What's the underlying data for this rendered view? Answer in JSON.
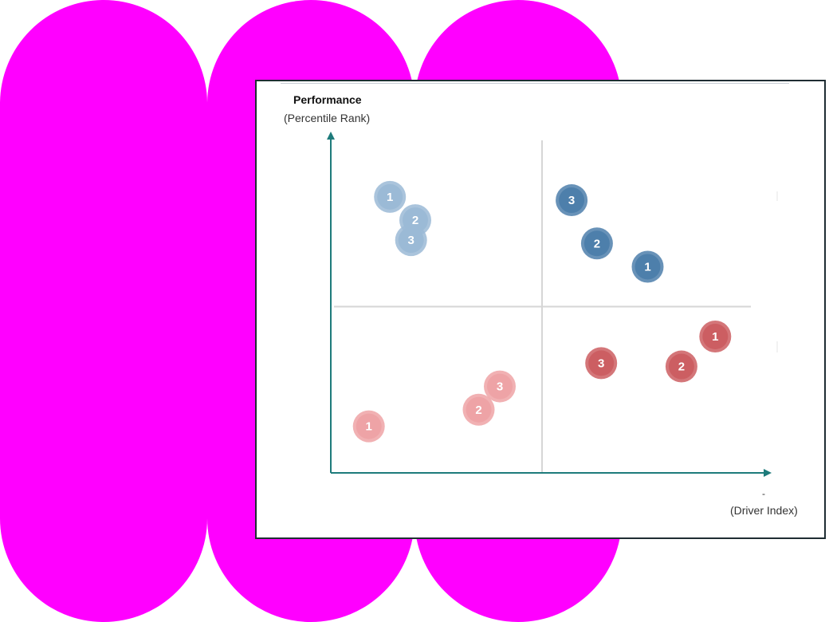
{
  "chart_data": {
    "type": "scatter",
    "ylabel_title": "Performance",
    "ylabel_sub": "(Percentile Rank)",
    "xlabel_sub": "(Driver Index)",
    "xlabel_mark": "-",
    "xlim": [
      0,
      100
    ],
    "ylim": [
      0,
      100
    ],
    "quadrant_divider": {
      "x": 50,
      "y": 50
    },
    "grid": false,
    "legend": "none",
    "colors": {
      "background": "#ff00ff",
      "axis": "#1e7b7b",
      "divider": "#d6d6d6",
      "light_blue": "#9bbad6",
      "dark_blue": "#4d7fab",
      "light_red": "#eea3a6",
      "dark_red": "#cc5e62"
    },
    "series": [
      {
        "color": "light_blue",
        "points": [
          {
            "label": "1",
            "x": 14,
            "y": 83
          },
          {
            "label": "2",
            "x": 20,
            "y": 76
          },
          {
            "label": "3",
            "x": 19,
            "y": 70
          }
        ]
      },
      {
        "color": "dark_blue",
        "points": [
          {
            "label": "3",
            "x": 57,
            "y": 82
          },
          {
            "label": "2",
            "x": 63,
            "y": 69
          },
          {
            "label": "1",
            "x": 75,
            "y": 62
          }
        ]
      },
      {
        "color": "light_red",
        "points": [
          {
            "label": "1",
            "x": 9,
            "y": 14
          },
          {
            "label": "2",
            "x": 35,
            "y": 19
          },
          {
            "label": "3",
            "x": 40,
            "y": 26
          }
        ]
      },
      {
        "color": "dark_red",
        "points": [
          {
            "label": "3",
            "x": 64,
            "y": 33
          },
          {
            "label": "2",
            "x": 83,
            "y": 32
          },
          {
            "label": "1",
            "x": 91,
            "y": 41
          }
        ]
      }
    ]
  }
}
